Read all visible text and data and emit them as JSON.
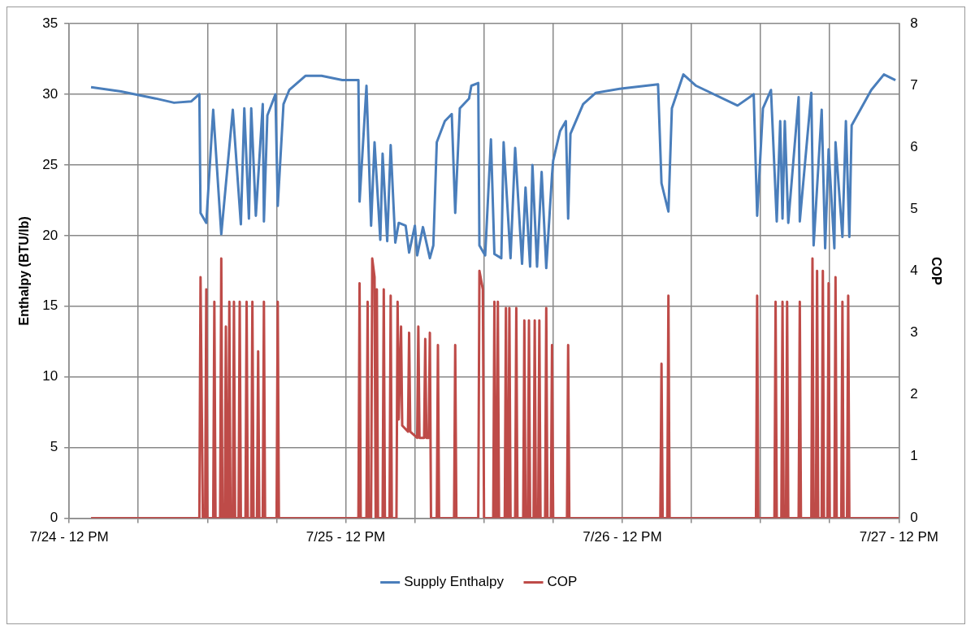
{
  "chart_data": {
    "type": "line",
    "ylabel": "Enthalpy (BTU/lb)",
    "y2label": "COP",
    "xlim": [
      "--07-24T12:00",
      "--07-27T12:00"
    ],
    "xticks": [
      {
        "value": "--07-24T12:00",
        "label": "7/24 - 12 PM"
      },
      {
        "value": "--07-24T18:00",
        "label": null
      },
      {
        "value": "--07-25T00:00",
        "label": null
      },
      {
        "value": "--07-25T06:00",
        "label": null
      },
      {
        "value": "--07-25T12:00",
        "label": "7/25 - 12 PM"
      },
      {
        "value": "--07-25T18:00",
        "label": null
      },
      {
        "value": "--07-26T00:00",
        "label": null
      },
      {
        "value": "--07-26T06:00",
        "label": null
      },
      {
        "value": "--07-26T12:00",
        "label": "7/26 - 12 PM"
      },
      {
        "value": "--07-26T18:00",
        "label": null
      },
      {
        "value": "--07-27T00:00",
        "label": null
      },
      {
        "value": "--07-27T06:00",
        "label": null
      },
      {
        "value": "--07-27T12:00",
        "label": "7/27 - 12 PM"
      }
    ],
    "ylim": [
      0,
      35
    ],
    "yticks": [
      0,
      5,
      10,
      15,
      20,
      25,
      30,
      35
    ],
    "y2lim": [
      0,
      8
    ],
    "y2ticks": [
      0,
      1,
      2,
      3,
      4,
      5,
      6,
      7,
      8
    ],
    "grid": true,
    "legend": "bottom",
    "marker": "none",
    "line_style": "solid",
    "series": [
      {
        "name": "Supply Enthalpy",
        "color": "#4a7ebb",
        "x": [
          "--07-24T13:54",
          "--07-24T16:30",
          "--07-24T19:30",
          "--07-24T21:06",
          "--07-24T22:36",
          "--07-24T23:18",
          "--07-24T23:24",
          "--07-24T23:54",
          "--07-25T00:30",
          "--07-25T01:12",
          "--07-25T02:12",
          "--07-25T02:54",
          "--07-25T03:12",
          "--07-25T03:36",
          "--07-25T03:48",
          "--07-25T04:12",
          "--07-25T04:48",
          "--07-25T04:54",
          "--07-25T05:12",
          "--07-25T05:54",
          "--07-25T06:06",
          "--07-25T06:36",
          "--07-25T07:06",
          "--07-25T08:30",
          "--07-25T09:54",
          "--07-25T11:42",
          "--07-25T13:06",
          "--07-25T13:12",
          "--07-25T13:48",
          "--07-25T14:12",
          "--07-25T14:30",
          "--07-25T15:00",
          "--07-25T15:12",
          "--07-25T15:36",
          "--07-25T15:54",
          "--07-25T16:18",
          "--07-25T16:36",
          "--07-25T17:12",
          "--07-25T17:30",
          "--07-25T18:00",
          "--07-25T18:12",
          "--07-25T18:42",
          "--07-25T19:18",
          "--07-25T19:36",
          "--07-25T19:54",
          "--07-25T20:36",
          "--07-25T21:12",
          "--07-25T21:30",
          "--07-25T21:54",
          "--07-25T22:42",
          "--07-25T22:54",
          "--07-25T23:30",
          "--07-25T23:36",
          "--07-26T00:06",
          "--07-26T00:36",
          "--07-26T00:54",
          "--07-26T01:30",
          "--07-26T01:42",
          "--07-26T02:18",
          "--07-26T02:42",
          "--07-26T03:18",
          "--07-26T03:36",
          "--07-26T04:00",
          "--07-26T04:12",
          "--07-26T04:36",
          "--07-26T05:00",
          "--07-26T05:24",
          "--07-26T05:54",
          "--07-26T06:00",
          "--07-26T06:36",
          "--07-26T07:06",
          "--07-26T07:18",
          "--07-26T07:30",
          "--07-26T08:36",
          "--07-26T09:42",
          "--07-26T11:54",
          "--07-26T15:06",
          "--07-26T15:24",
          "--07-26T16:00",
          "--07-26T16:18",
          "--07-26T17:18",
          "--07-26T18:24",
          "--07-26T22:00",
          "--07-26T23:24",
          "--07-26T23:42",
          "--07-27T00:12",
          "--07-27T00:54",
          "--07-27T01:24",
          "--07-27T01:42",
          "--07-27T01:54",
          "--07-27T02:06",
          "--07-27T02:24",
          "--07-27T03:18",
          "--07-27T03:24",
          "--07-27T04:24",
          "--07-27T04:36",
          "--07-27T05:18",
          "--07-27T05:36",
          "--07-27T05:54",
          "--07-27T06:24",
          "--07-27T06:30",
          "--07-27T07:06",
          "--07-27T07:24",
          "--07-27T07:42",
          "--07-27T07:54",
          "--07-27T09:36",
          "--07-27T10:42",
          "--07-27T11:42"
        ],
        "values": [
          30.5,
          30.2,
          29.7,
          29.4,
          29.5,
          30.0,
          21.6,
          20.9,
          28.9,
          20.1,
          28.9,
          20.8,
          29.0,
          21.2,
          29.0,
          21.4,
          29.3,
          21.0,
          28.5,
          30.0,
          22.1,
          29.3,
          30.3,
          31.3,
          31.3,
          31.0,
          31.0,
          22.4,
          30.6,
          20.7,
          26.6,
          19.7,
          25.8,
          19.6,
          26.4,
          19.5,
          20.9,
          20.7,
          18.8,
          20.7,
          18.6,
          20.6,
          18.4,
          19.3,
          26.6,
          28.1,
          28.6,
          21.6,
          29.0,
          29.7,
          30.6,
          30.8,
          19.3,
          18.6,
          26.8,
          18.7,
          18.4,
          26.6,
          18.4,
          26.2,
          18.0,
          23.4,
          17.8,
          25.0,
          17.8,
          24.5,
          17.7,
          24.3,
          25.3,
          27.4,
          28.1,
          21.2,
          27.2,
          29.3,
          30.1,
          30.4,
          30.7,
          23.7,
          21.7,
          29.0,
          31.4,
          30.6,
          29.2,
          30.0,
          21.4,
          29.0,
          30.3,
          21.0,
          28.1,
          21.2,
          28.1,
          20.9,
          29.8,
          21.0,
          30.1,
          19.3,
          28.9,
          19.1,
          26.1,
          19.1,
          26.6,
          19.9,
          28.1,
          19.9,
          27.8,
          30.3,
          31.4,
          31.0
        ]
      },
      {
        "name": "COP",
        "color": "#be4b48",
        "axis": "y2",
        "x": [
          "--07-24T13:54",
          "--07-24T23:18",
          "--07-24T23:24",
          "--07-24T23:36",
          "--07-24T23:48",
          "--07-24T23:54",
          "--07-25T00:00",
          "--07-25T00:30",
          "--07-25T00:36",
          "--07-25T00:42",
          "--07-25T01:06",
          "--07-25T01:12",
          "--07-25T01:18",
          "--07-25T01:30",
          "--07-25T01:36",
          "--07-25T01:42",
          "--07-25T01:48",
          "--07-25T01:54",
          "--07-25T02:00",
          "--07-25T02:12",
          "--07-25T02:18",
          "--07-25T02:24",
          "--07-25T02:42",
          "--07-25T02:48",
          "--07-25T02:54",
          "--07-25T03:18",
          "--07-25T03:24",
          "--07-25T03:30",
          "--07-25T03:48",
          "--07-25T03:54",
          "--07-25T04:00",
          "--07-25T04:18",
          "--07-25T04:24",
          "--07-25T04:30",
          "--07-25T04:48",
          "--07-25T04:54",
          "--07-25T05:00",
          "--07-25T06:00",
          "--07-25T06:06",
          "--07-25T06:12",
          "--07-25T13:06",
          "--07-25T13:12",
          "--07-25T13:18",
          "--07-25T13:48",
          "--07-25T13:54",
          "--07-25T14:00",
          "--07-25T14:12",
          "--07-25T14:18",
          "--07-25T14:30",
          "--07-25T14:36",
          "--07-25T14:42",
          "--07-25T14:48",
          "--07-25T15:12",
          "--07-25T15:18",
          "--07-25T15:24",
          "--07-25T15:48",
          "--07-25T15:54",
          "--07-25T16:00",
          "--07-25T16:24",
          "--07-25T16:30",
          "--07-25T16:36",
          "--07-25T16:48",
          "--07-25T16:54",
          "--07-25T17:24",
          "--07-25T17:30",
          "--07-25T17:36",
          "--07-25T18:12",
          "--07-25T18:18",
          "--07-25T18:24",
          "--07-25T18:48",
          "--07-25T18:54",
          "--07-25T19:00",
          "--07-25T19:12",
          "--07-25T19:18",
          "--07-25T19:24",
          "--07-25T19:54",
          "--07-25T20:00",
          "--07-25T20:06",
          "--07-25T21:24",
          "--07-25T21:30",
          "--07-25T21:36",
          "--07-25T23:30",
          "--07-25T23:36",
          "--07-25T23:54",
          "--07-26T00:00",
          "--07-26T00:48",
          "--07-26T00:54",
          "--07-26T01:00",
          "--07-26T01:06",
          "--07-26T01:12",
          "--07-26T01:18",
          "--07-26T01:48",
          "--07-26T01:54",
          "--07-26T02:00",
          "--07-26T02:06",
          "--07-26T02:12",
          "--07-26T02:18",
          "--07-26T02:42",
          "--07-26T02:48",
          "--07-26T02:54",
          "--07-26T03:24",
          "--07-26T03:30",
          "--07-26T03:36",
          "--07-26T03:48",
          "--07-26T03:54",
          "--07-26T04:00",
          "--07-26T04:18",
          "--07-26T04:24",
          "--07-26T04:30",
          "--07-26T04:42",
          "--07-26T04:48",
          "--07-26T04:54",
          "--07-26T05:18",
          "--07-26T05:24",
          "--07-26T05:30",
          "--07-26T05:48",
          "--07-26T05:54",
          "--07-26T06:00",
          "--07-26T07:12",
          "--07-26T07:18",
          "--07-26T07:24",
          "--07-26T15:18",
          "--07-26T15:24",
          "--07-26T15:30",
          "--07-26T15:54",
          "--07-26T16:00",
          "--07-26T16:06",
          "--07-26T23:36",
          "--07-26T23:42",
          "--07-26T23:48",
          "--07-27T01:12",
          "--07-27T01:18",
          "--07-27T01:24",
          "--07-27T01:48",
          "--07-27T01:54",
          "--07-27T02:00",
          "--07-27T02:12",
          "--07-27T02:18",
          "--07-27T02:24",
          "--07-27T03:18",
          "--07-27T03:24",
          "--07-27T03:30",
          "--07-27T04:24",
          "--07-27T04:30",
          "--07-27T04:36",
          "--07-27T04:48",
          "--07-27T04:54",
          "--07-27T05:00",
          "--07-27T05:18",
          "--07-27T05:24",
          "--07-27T05:30",
          "--07-27T05:48",
          "--07-27T05:54",
          "--07-27T06:00",
          "--07-27T06:24",
          "--07-27T06:30",
          "--07-27T06:36",
          "--07-27T07:00",
          "--07-27T07:06",
          "--07-27T07:12",
          "--07-27T07:30",
          "--07-27T07:36",
          "--07-27T07:42",
          "--07-27T12:00"
        ],
        "values": [
          0,
          0,
          3.9,
          0,
          0,
          3.7,
          0,
          0,
          3.5,
          0,
          0,
          4.2,
          0,
          0,
          3.1,
          0,
          0,
          3.5,
          0,
          0,
          3.5,
          0,
          0,
          3.5,
          0,
          0,
          3.5,
          0,
          0,
          3.5,
          0,
          0,
          2.7,
          0,
          0,
          3.5,
          0,
          0,
          3.5,
          0,
          0,
          3.8,
          0,
          0,
          3.5,
          0,
          0,
          4.2,
          3.9,
          0,
          3.7,
          0,
          0,
          3.7,
          0,
          0,
          3.6,
          0,
          0,
          3.5,
          1.6,
          3.1,
          1.5,
          1.4,
          3.0,
          1.4,
          1.3,
          3.1,
          1.3,
          1.3,
          2.9,
          1.3,
          1.3,
          3.0,
          0,
          0,
          2.8,
          0,
          0,
          2.8,
          0,
          0,
          4.0,
          3.7,
          0,
          0,
          3.5,
          0,
          0,
          3.5,
          0,
          0,
          3.4,
          0,
          0,
          3.4,
          0,
          0,
          3.4,
          0,
          0,
          3.2,
          0,
          0,
          3.2,
          0,
          0,
          3.2,
          0,
          0,
          3.2,
          0,
          0,
          3.4,
          0,
          0,
          2.8,
          0,
          0,
          2.8,
          0,
          0,
          2.5,
          0,
          0,
          3.6,
          0,
          0,
          3.6,
          0,
          0,
          3.5,
          0,
          0,
          3.5,
          0,
          0,
          3.5,
          0,
          0,
          3.5,
          0,
          0,
          4.2,
          0,
          0,
          4.0,
          0,
          0,
          4.0,
          0,
          0,
          3.8,
          0,
          0,
          3.9,
          0,
          0,
          3.5,
          0,
          0,
          3.6,
          0,
          0
        ]
      }
    ]
  }
}
